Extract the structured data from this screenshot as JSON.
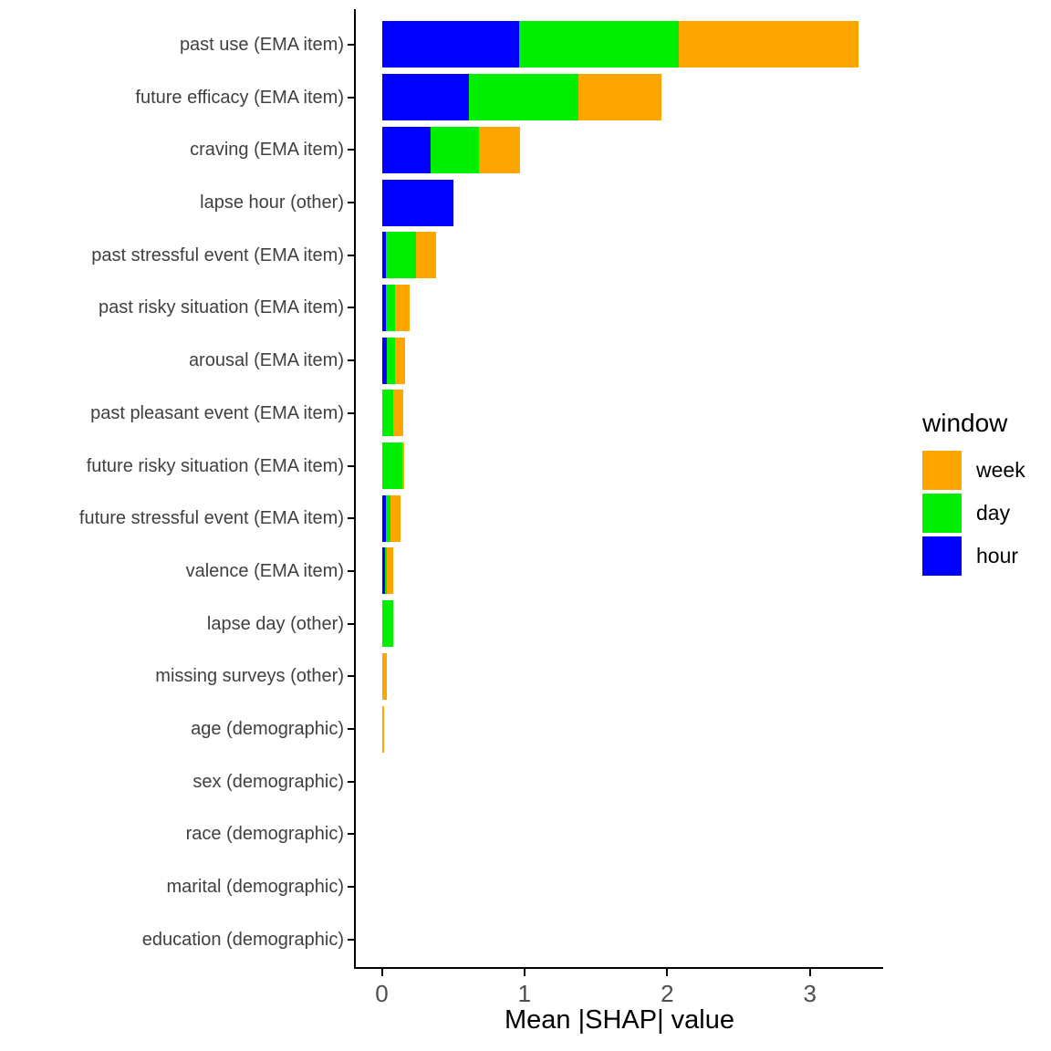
{
  "chart_data": {
    "type": "bar",
    "orientation": "horizontal",
    "stacked": true,
    "title": "",
    "xlabel": "Mean |SHAP| value",
    "ylabel": "",
    "xlim": [
      0,
      3.5
    ],
    "x_ticks": [
      "0",
      "1",
      "2",
      "3"
    ],
    "grid": false,
    "colors": {
      "week": "#FFA500",
      "day": "#00EE00",
      "hour": "#0000FF"
    },
    "legend": {
      "title": "window",
      "position": "right",
      "entries": [
        "week",
        "day",
        "hour"
      ]
    },
    "categories": [
      "past use (EMA item)",
      "future efficacy (EMA item)",
      "craving (EMA item)",
      "lapse hour (other)",
      "past stressful event (EMA item)",
      "past risky situation (EMA item)",
      "arousal (EMA item)",
      "past pleasant event (EMA item)",
      "future risky situation (EMA item)",
      "future stressful event (EMA item)",
      "valence (EMA item)",
      "lapse day (other)",
      "missing surveys (other)",
      "age (demographic)",
      "sex (demographic)",
      "race (demographic)",
      "marital (demographic)",
      "education (demographic)"
    ],
    "series": [
      {
        "name": "hour",
        "values": [
          0.96,
          0.61,
          0.34,
          0.5,
          0.03,
          0.03,
          0.035,
          0,
          0,
          0.03,
          0.025,
          0,
          0,
          0,
          0,
          0,
          0,
          0
        ]
      },
      {
        "name": "day",
        "values": [
          1.12,
          0.77,
          0.34,
          0,
          0.21,
          0.065,
          0.055,
          0.08,
          0.145,
          0.03,
          0.013,
          0.08,
          0,
          0,
          0,
          0,
          0,
          0
        ]
      },
      {
        "name": "week",
        "values": [
          1.26,
          0.58,
          0.29,
          0,
          0.14,
          0.1,
          0.07,
          0.07,
          0.012,
          0.07,
          0.043,
          0,
          0.032,
          0.017,
          0,
          0,
          0,
          0
        ]
      }
    ]
  }
}
